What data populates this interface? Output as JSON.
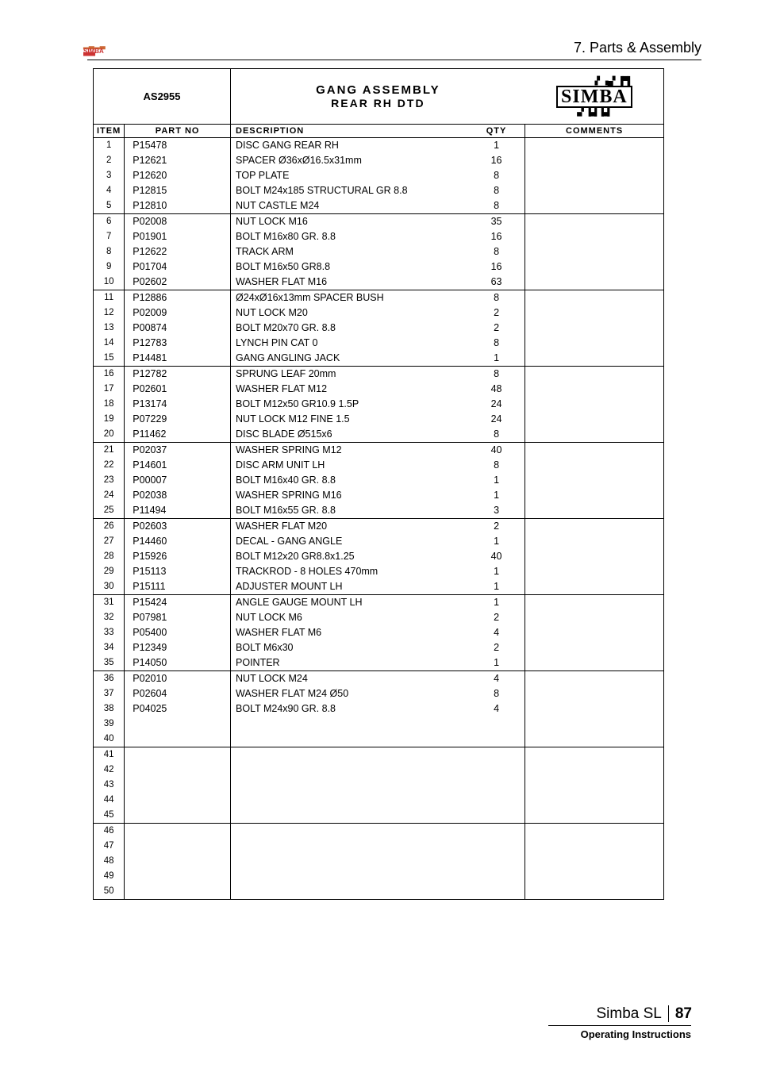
{
  "header": {
    "section": "7. Parts & Assembly"
  },
  "top_logo": {
    "bars": "▂▃▂▃",
    "text": "SIMBA",
    "under": "▀▀▀"
  },
  "title": {
    "model": "AS2955",
    "main": "GANG ASSEMBLY",
    "sub": "REAR RH DTD",
    "logo_top": "▗▘▗▄▘▐▀▌",
    "logo_main": "SIMBA",
    "logo_bot": "▄▘▐▄▌▐▄▌"
  },
  "columns": {
    "item": "ITEM",
    "part": "PART NO",
    "desc": "DESCRIPTION",
    "qty": "QTY",
    "com": "COMMENTS"
  },
  "rows": [
    {
      "i": "1",
      "p": "P15478",
      "d": "DISC GANG REAR RH",
      "q": "1",
      "div": false
    },
    {
      "i": "2",
      "p": "P12621",
      "d": "SPACER Ø36xØ16.5x31mm",
      "q": "16",
      "div": false
    },
    {
      "i": "3",
      "p": "P12620",
      "d": "TOP PLATE",
      "q": "8",
      "div": false
    },
    {
      "i": "4",
      "p": "P12815",
      "d": "BOLT M24x185 STRUCTURAL GR 8.8",
      "q": "8",
      "div": false
    },
    {
      "i": "5",
      "p": "P12810",
      "d": "NUT CASTLE M24",
      "q": "8",
      "div": false
    },
    {
      "i": "6",
      "p": "P02008",
      "d": "NUT LOCK M16",
      "q": "35",
      "div": true
    },
    {
      "i": "7",
      "p": "P01901",
      "d": "BOLT M16x80 GR. 8.8",
      "q": "16",
      "div": false
    },
    {
      "i": "8",
      "p": "P12622",
      "d": "TRACK ARM",
      "q": "8",
      "div": false
    },
    {
      "i": "9",
      "p": "P01704",
      "d": "BOLT M16x50 GR8.8",
      "q": "16",
      "div": false
    },
    {
      "i": "10",
      "p": "P02602",
      "d": "WASHER FLAT M16",
      "q": "63",
      "div": false
    },
    {
      "i": "11",
      "p": "P12886",
      "d": "Ø24xØ16x13mm SPACER BUSH",
      "q": "8",
      "div": true
    },
    {
      "i": "12",
      "p": "P02009",
      "d": "NUT LOCK M20",
      "q": "2",
      "div": false
    },
    {
      "i": "13",
      "p": "P00874",
      "d": "BOLT M20x70 GR. 8.8",
      "q": "2",
      "div": false
    },
    {
      "i": "14",
      "p": "P12783",
      "d": "LYNCH PIN CAT 0",
      "q": "8",
      "div": false
    },
    {
      "i": "15",
      "p": "P14481",
      "d": "GANG ANGLING JACK",
      "q": "1",
      "div": false
    },
    {
      "i": "16",
      "p": "P12782",
      "d": "SPRUNG LEAF 20mm",
      "q": "8",
      "div": true
    },
    {
      "i": "17",
      "p": "P02601",
      "d": "WASHER FLAT M12",
      "q": "48",
      "div": false
    },
    {
      "i": "18",
      "p": "P13174",
      "d": "BOLT M12x50 GR10.9 1.5P",
      "q": "24",
      "div": false
    },
    {
      "i": "19",
      "p": "P07229",
      "d": "NUT LOCK M12 FINE 1.5",
      "q": "24",
      "div": false
    },
    {
      "i": "20",
      "p": "P11462",
      "d": "DISC BLADE Ø515x6",
      "q": "8",
      "div": false
    },
    {
      "i": "21",
      "p": "P02037",
      "d": "WASHER SPRING M12",
      "q": "40",
      "div": true
    },
    {
      "i": "22",
      "p": "P14601",
      "d": "DISC ARM UNIT LH",
      "q": "8",
      "div": false
    },
    {
      "i": "23",
      "p": "P00007",
      "d": "BOLT M16x40 GR. 8.8",
      "q": "1",
      "div": false
    },
    {
      "i": "24",
      "p": "P02038",
      "d": "WASHER SPRING M16",
      "q": "1",
      "div": false
    },
    {
      "i": "25",
      "p": "P11494",
      "d": "BOLT M16x55 GR. 8.8",
      "q": "3",
      "div": false
    },
    {
      "i": "26",
      "p": "P02603",
      "d": "WASHER FLAT M20",
      "q": "2",
      "div": true
    },
    {
      "i": "27",
      "p": "P14460",
      "d": "DECAL - GANG ANGLE",
      "q": "1",
      "div": false
    },
    {
      "i": "28",
      "p": "P15926",
      "d": "BOLT M12x20 GR8.8x1.25",
      "q": "40",
      "div": false
    },
    {
      "i": "29",
      "p": "P15113",
      "d": "TRACKROD - 8 HOLES 470mm",
      "q": "1",
      "div": false
    },
    {
      "i": "30",
      "p": "P15111",
      "d": "ADJUSTER MOUNT LH",
      "q": "1",
      "div": false
    },
    {
      "i": "31",
      "p": "P15424",
      "d": "ANGLE GAUGE MOUNT LH",
      "q": "1",
      "div": true
    },
    {
      "i": "32",
      "p": "P07981",
      "d": "NUT LOCK M6",
      "q": "2",
      "div": false
    },
    {
      "i": "33",
      "p": "P05400",
      "d": "WASHER FLAT M6",
      "q": "4",
      "div": false
    },
    {
      "i": "34",
      "p": "P12349",
      "d": "BOLT M6x30",
      "q": "2",
      "div": false
    },
    {
      "i": "35",
      "p": "P14050",
      "d": "POINTER",
      "q": "1",
      "div": false
    },
    {
      "i": "36",
      "p": "P02010",
      "d": "NUT LOCK M24",
      "q": "4",
      "div": true
    },
    {
      "i": "37",
      "p": "P02604",
      "d": "WASHER FLAT M24 Ø50",
      "q": "8",
      "div": false
    },
    {
      "i": "38",
      "p": "P04025",
      "d": "BOLT M24x90 GR. 8.8",
      "q": "4",
      "div": false
    },
    {
      "i": "39",
      "p": "",
      "d": "",
      "q": "",
      "div": false
    },
    {
      "i": "40",
      "p": "",
      "d": "",
      "q": "",
      "div": false
    },
    {
      "i": "41",
      "p": "",
      "d": "",
      "q": "",
      "div": true
    },
    {
      "i": "42",
      "p": "",
      "d": "",
      "q": "",
      "div": false
    },
    {
      "i": "43",
      "p": "",
      "d": "",
      "q": "",
      "div": false
    },
    {
      "i": "44",
      "p": "",
      "d": "",
      "q": "",
      "div": false
    },
    {
      "i": "45",
      "p": "",
      "d": "",
      "q": "",
      "div": false
    },
    {
      "i": "46",
      "p": "",
      "d": "",
      "q": "",
      "div": true
    },
    {
      "i": "47",
      "p": "",
      "d": "",
      "q": "",
      "div": false
    },
    {
      "i": "48",
      "p": "",
      "d": "",
      "q": "",
      "div": false
    },
    {
      "i": "49",
      "p": "",
      "d": "",
      "q": "",
      "div": false
    },
    {
      "i": "50",
      "p": "",
      "d": "",
      "q": "",
      "div": false
    }
  ],
  "footer": {
    "product": "Simba SL",
    "page": "87",
    "sub": "Operating Instructions"
  }
}
